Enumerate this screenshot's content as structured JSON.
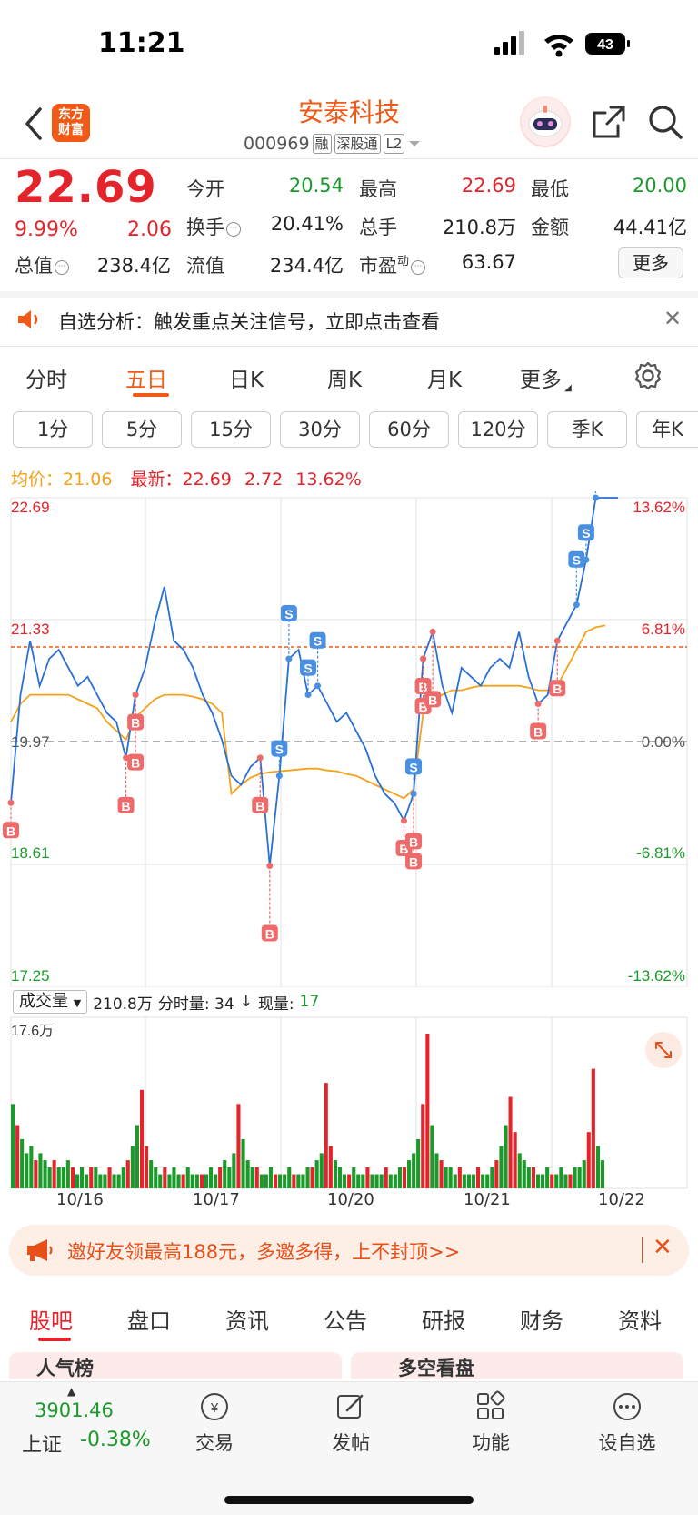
{
  "status_bar": {
    "time": "11:21",
    "battery": "43"
  },
  "header": {
    "logo_line1": "东方",
    "logo_line2": "财富",
    "stock_name": "安泰科技",
    "stock_code": "000969",
    "tags": [
      "融",
      "深股通",
      "L2"
    ]
  },
  "quote": {
    "price": "22.69",
    "change_pct": "9.99%",
    "change": "2.06",
    "open_label": "今开",
    "open": "20.54",
    "high_label": "最高",
    "high": "22.69",
    "low_label": "最低",
    "low": "20.00",
    "turnover_label": "换手",
    "turnover": "20.41%",
    "volume_label": "总手",
    "volume": "210.8万",
    "amount_label": "金额",
    "amount": "44.41亿",
    "mktcap_label": "总值",
    "mktcap": "238.4亿",
    "float_label": "流值",
    "float_cap": "234.4亿",
    "pe_label": "市盈",
    "pe_sup": "动",
    "pe": "63.67",
    "more_label": "更多"
  },
  "notice": {
    "text": "自选分析：触发重点关注信号，立即点击查看"
  },
  "period_tabs": [
    "分时",
    "五日",
    "日K",
    "周K",
    "月K",
    "更多"
  ],
  "period_active": "五日",
  "intervals": [
    "1分",
    "5分",
    "15分",
    "30分",
    "60分",
    "120分",
    "季K",
    "年K"
  ],
  "legend": {
    "avg_label": "均价：",
    "avg_value": "21.06",
    "last_label": "最新：",
    "last_value": "22.69",
    "last_change": "2.72",
    "last_pct": "13.62%"
  },
  "chart_data": {
    "type": "line",
    "title": "",
    "price_axis": [
      "22.69",
      "21.33",
      "19.97",
      "18.61",
      "17.25"
    ],
    "pct_axis": [
      "13.62%",
      "6.81%",
      "0.00%",
      "-6.81%",
      "-13.62%"
    ],
    "ylim": [
      17.25,
      22.69
    ],
    "x_dates": [
      "10/16",
      "10/17",
      "10/20",
      "10/21",
      "10/22"
    ],
    "price_series": [
      19.3,
      20.5,
      21.1,
      20.6,
      20.9,
      21.0,
      20.8,
      20.6,
      20.7,
      20.5,
      20.3,
      20.2,
      19.8,
      20.5,
      20.8,
      21.3,
      21.7,
      21.1,
      21.0,
      20.8,
      20.5,
      20.3,
      20.0,
      19.6,
      19.5,
      19.7,
      19.8,
      18.6,
      19.6,
      20.9,
      21.0,
      20.5,
      20.6,
      20.4,
      20.2,
      20.3,
      20.1,
      19.9,
      19.6,
      19.4,
      19.3,
      19.1,
      19.4,
      20.9,
      21.2,
      20.6,
      20.3,
      20.8,
      20.7,
      20.6,
      20.8,
      20.9,
      20.8,
      21.2,
      20.7,
      20.4,
      20.5,
      21.1,
      21.3,
      21.5,
      22.0,
      22.69,
      22.69
    ],
    "avg_series": [
      20.2,
      20.4,
      20.5,
      20.5,
      20.5,
      20.5,
      20.5,
      20.45,
      20.4,
      20.35,
      20.2,
      20.1,
      20.0,
      20.25,
      20.35,
      20.45,
      20.5,
      20.5,
      20.5,
      20.48,
      20.45,
      20.4,
      20.3,
      19.4,
      19.5,
      19.58,
      19.62,
      19.64,
      19.65,
      19.66,
      19.67,
      19.68,
      19.68,
      19.66,
      19.65,
      19.62,
      19.6,
      19.55,
      19.5,
      19.45,
      19.4,
      19.35,
      19.45,
      20.3,
      20.45,
      20.5,
      20.55,
      20.55,
      20.58,
      20.6,
      20.6,
      20.6,
      20.6,
      20.6,
      20.58,
      20.55,
      20.55,
      20.6,
      20.8,
      21.0,
      21.2,
      21.25,
      21.27
    ],
    "reference_price": "19.97",
    "prev_close_line": "21.33",
    "signals_B": 16,
    "signals_S": 8
  },
  "volume": {
    "selector_label": "成交量",
    "total": "210.8万",
    "tick_label": "分时量: 34",
    "arrow": "↓",
    "now_label": "现量:",
    "now_value": "17",
    "max_label": "17.6万",
    "bars": [
      12,
      9,
      7,
      5,
      6,
      4,
      5,
      4,
      3,
      4,
      3,
      3,
      4,
      3,
      2,
      3,
      2,
      3,
      3,
      2,
      2,
      3,
      2,
      2,
      3,
      4,
      6,
      9,
      14,
      6,
      4,
      3,
      2,
      3,
      2,
      3,
      2,
      2,
      3,
      2,
      2,
      2,
      2,
      3,
      2,
      3,
      4,
      3,
      5,
      12,
      7,
      4,
      3,
      3,
      2,
      2,
      3,
      2,
      2,
      2,
      3,
      2,
      2,
      2,
      3,
      3,
      4,
      5,
      15,
      6,
      4,
      3,
      2,
      2,
      3,
      2,
      2,
      3,
      2,
      2,
      2,
      3,
      2,
      2,
      3,
      3,
      4,
      5,
      7,
      12,
      22,
      9,
      5,
      4,
      3,
      3,
      2,
      3,
      2,
      2,
      2,
      3,
      2,
      2,
      3,
      4,
      6,
      9,
      13,
      8,
      5,
      4,
      3,
      3,
      2,
      2,
      3,
      2,
      2,
      3,
      2,
      2,
      3,
      3,
      4,
      8,
      17,
      6,
      4
    ]
  },
  "promo": {
    "text": "邀好友领最高188元，多邀多得，上不封顶>>"
  },
  "bottom_tabs": [
    "股吧",
    "盘口",
    "资讯",
    "公告",
    "研报",
    "财务",
    "资料"
  ],
  "bottom_active": "股吧",
  "peek": {
    "left": "人气榜",
    "right": "多空看盘"
  },
  "bottom_nav": {
    "index_value": "3901.46",
    "index_name": "上证",
    "index_change": "-0.38%",
    "items": [
      "交易",
      "发帖",
      "功能",
      "设自选"
    ]
  }
}
